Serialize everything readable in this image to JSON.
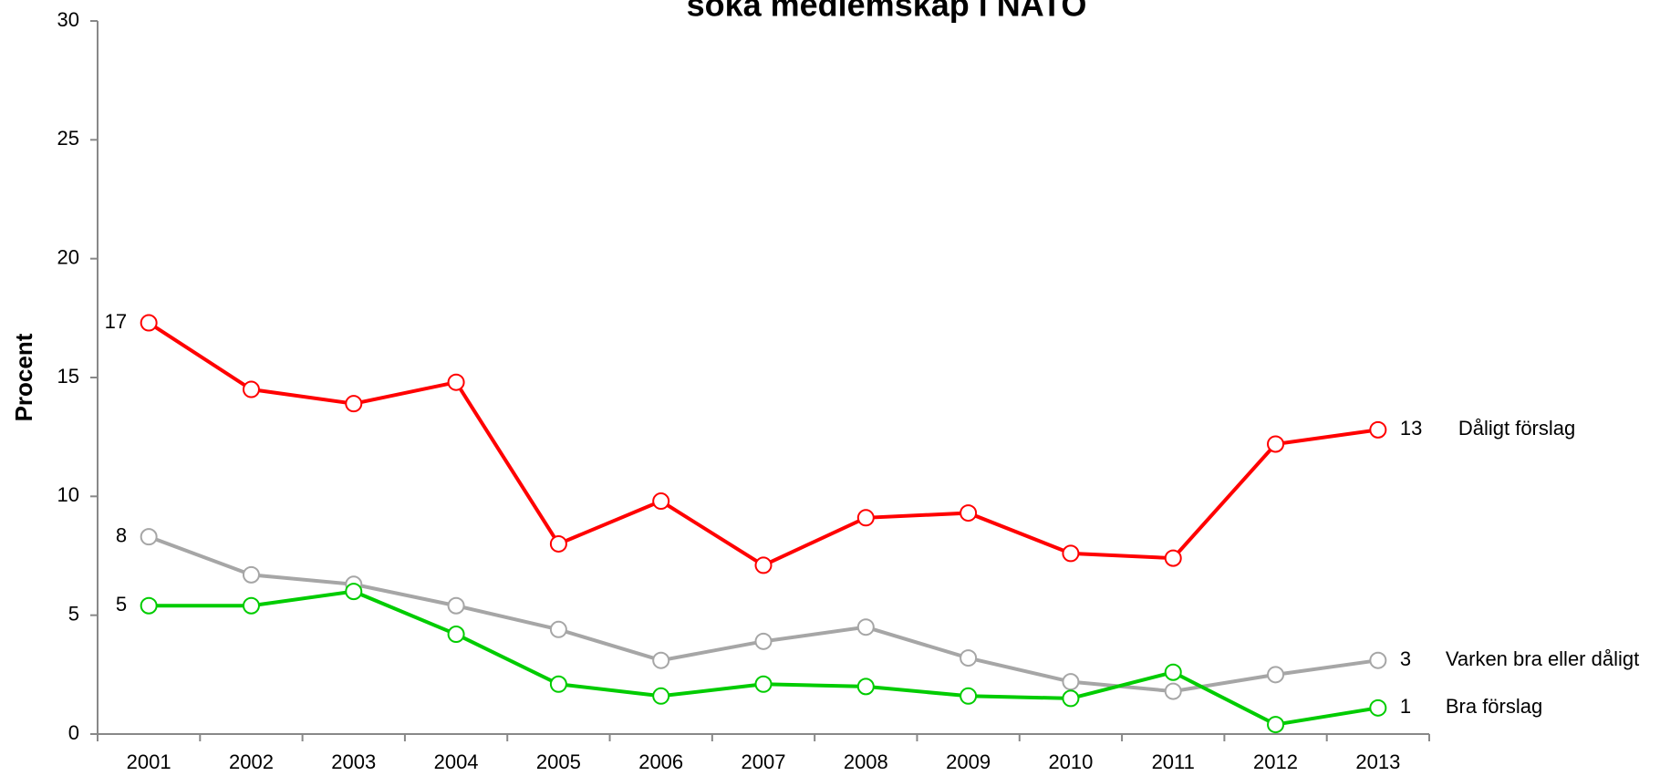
{
  "chart_data": {
    "type": "line",
    "title": "söka medlemskap i NATO",
    "ylabel": "Procent",
    "categories": [
      "2001",
      "2002",
      "2003",
      "2004",
      "2005",
      "2006",
      "2007",
      "2008",
      "2009",
      "2010",
      "2011",
      "2012",
      "2013"
    ],
    "series": [
      {
        "name": "Dåligt förslag",
        "color": "#ff0000",
        "values": [
          17.3,
          14.5,
          13.9,
          14.8,
          8.0,
          9.8,
          7.1,
          9.1,
          9.3,
          7.6,
          7.4,
          12.2,
          12.8
        ],
        "value_labels": [
          "17",
          null,
          null,
          null,
          null,
          null,
          null,
          null,
          null,
          null,
          null,
          null,
          "13"
        ]
      },
      {
        "name": "Varken bra eller dåligt",
        "color": "#a6a6a6",
        "values": [
          8.3,
          6.7,
          6.3,
          5.4,
          4.4,
          3.1,
          3.9,
          4.5,
          3.2,
          2.2,
          1.8,
          2.5,
          3.1
        ],
        "value_labels": [
          "8",
          null,
          null,
          null,
          null,
          null,
          null,
          null,
          null,
          null,
          null,
          null,
          "3"
        ]
      },
      {
        "name": "Bra förslag",
        "color": "#00cc00",
        "values": [
          5.4,
          5.4,
          6.0,
          4.2,
          2.1,
          1.6,
          2.1,
          2.0,
          1.6,
          1.5,
          2.6,
          0.4,
          1.1
        ],
        "value_labels": [
          "5",
          null,
          null,
          null,
          null,
          null,
          null,
          null,
          null,
          null,
          null,
          null,
          "1"
        ]
      }
    ],
    "ylim": [
      0,
      30
    ],
    "yticks": [
      0,
      5,
      10,
      15,
      20,
      25,
      30
    ],
    "grid": false
  }
}
